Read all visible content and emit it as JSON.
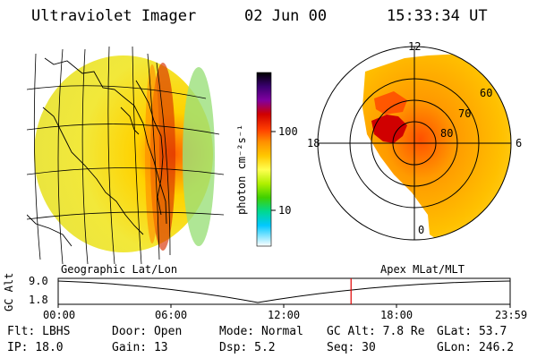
{
  "header": {
    "instrument": "Ultraviolet Imager",
    "date": "02 Jun 00",
    "time": "15:33:34 UT"
  },
  "colorbar": {
    "unit_label": "photon cm⁻²s⁻¹",
    "ticks": [
      "100",
      "10"
    ],
    "colors": [
      "#000000",
      "#2a0060",
      "#8000a0",
      "#c00000",
      "#ff3000",
      "#ff8a00",
      "#ffc000",
      "#ffff40",
      "#c8ff00",
      "#60e000",
      "#00e0a0",
      "#00c8ff",
      "#ffffff"
    ]
  },
  "panels": {
    "left_label": "Geographic Lat/Lon",
    "right_label": "Apex MLat/MLT",
    "mlt_labels": {
      "top": "12",
      "left": "18",
      "right": "6",
      "bottom": "0"
    },
    "mlat_labels": [
      "60",
      "70",
      "80"
    ]
  },
  "timeline": {
    "ylabel": "GC Alt",
    "y_ticks": [
      "9.0",
      "1.8"
    ],
    "x_ticks": [
      "00:00",
      "06:00",
      "12:00",
      "18:00",
      "23:59"
    ],
    "marker_time_fraction": 0.648,
    "marker_color": "#e00000"
  },
  "info": {
    "flt": "Flt: LBHS",
    "door": "Door: Open",
    "mode": "Mode: Normal",
    "gc_alt": "GC Alt: 7.8 Re",
    "glat": "GLat:  53.7",
    "ip": "IP: 18.0",
    "gain": "Gain: 13",
    "dsp": "Dsp:    5.2",
    "seq": "Seq: 30",
    "glon": "GLon: 246.2"
  }
}
